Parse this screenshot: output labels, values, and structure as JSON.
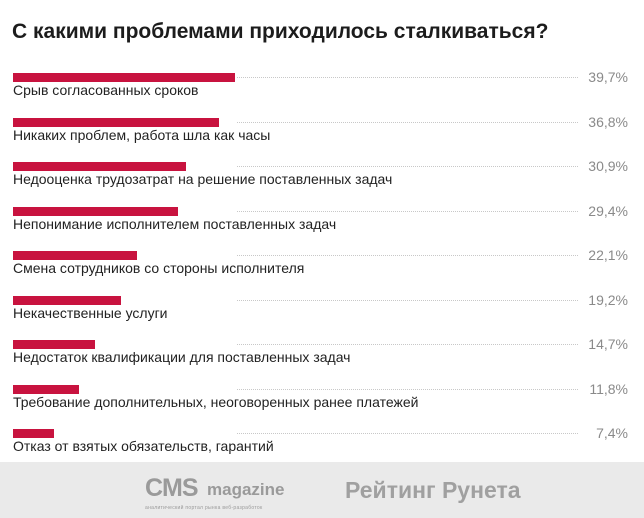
{
  "chart_data": {
    "type": "bar",
    "orientation": "horizontal",
    "title": "С какими проблемами приходилось сталкиваться?",
    "categories": [
      "Срыв согласованных сроков",
      "Никаких проблем, работа шла как часы",
      "Недооценка трудозатрат на решение поставленных задач",
      "Непонимание исполнителем поставленных задач",
      "Смена сотрудников со стороны исполнителя",
      "Некачественные услуги",
      "Недостаток квалификации для поставленных задач",
      "Требование дополнительных, неоговоренных ранее платежей",
      "Отказ от взятых обязательств, гарантий"
    ],
    "values": [
      39.7,
      36.8,
      30.9,
      29.4,
      22.1,
      19.2,
      14.7,
      11.8,
      7.4
    ],
    "value_labels": [
      "39,7%",
      "36,8%",
      "30,9%",
      "29,4%",
      "22,1%",
      "19,2%",
      "14,7%",
      "11,8%",
      "7,4%"
    ],
    "bar_color": "#c8133f"
  },
  "footer": {
    "logo_cms_big": "CMS",
    "logo_cms_small": "magazine",
    "logo_cms_sub": "аналитический портал рынка веб-разработок",
    "logo_runet": "Рейтинг Рунета"
  }
}
